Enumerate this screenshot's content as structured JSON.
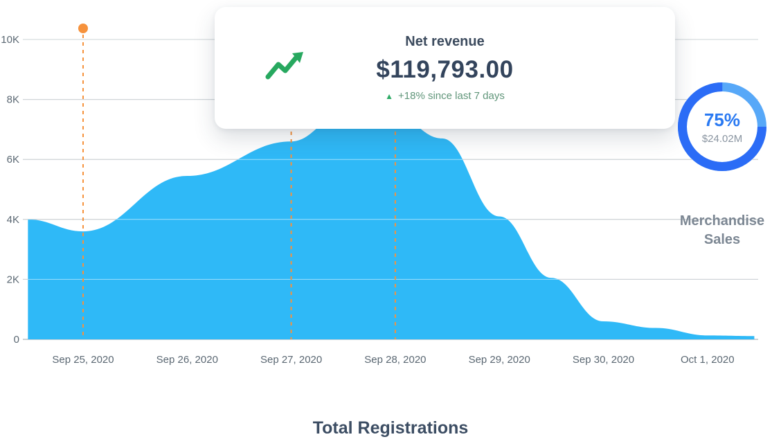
{
  "revenue_card": {
    "title": "Net revenue",
    "value": "$119,793.00",
    "delta": "+18% since last 7 days",
    "delta_direction": "up",
    "icon": "trend-up-arrow-icon",
    "accent_color": "#2EAB66"
  },
  "merch_donut": {
    "percent": 75,
    "percent_label": "75%",
    "amount": "$24.02M",
    "caption": "Merchandise Sales",
    "primary_color": "#2B6CF6",
    "track_color": "#57A8F8"
  },
  "chart_data": {
    "type": "area",
    "title": "Total Registrations",
    "categories": [
      "Sep 25, 2020",
      "Sep 26, 2020",
      "Sep 27, 2020",
      "Sep 28, 2020",
      "Sep 29, 2020",
      "Sep 30, 2020",
      "Oct 1, 2020"
    ],
    "values": [
      3600,
      5450,
      6600,
      7450,
      4100,
      600,
      130
    ],
    "points": [
      [
        -0.53,
        4000
      ],
      [
        0,
        3600
      ],
      [
        1,
        5450
      ],
      [
        2,
        6600
      ],
      [
        2.5,
        7500
      ],
      [
        3,
        7450
      ],
      [
        3.45,
        6700
      ],
      [
        4,
        4100
      ],
      [
        4.5,
        2050
      ],
      [
        5,
        600
      ],
      [
        5.5,
        380
      ],
      [
        6,
        130
      ],
      [
        6.45,
        110
      ]
    ],
    "ylim": [
      0,
      10000
    ],
    "yticks": [
      {
        "value": 0,
        "label": "0"
      },
      {
        "value": 2000,
        "label": "2K"
      },
      {
        "value": 4000,
        "label": "4K"
      },
      {
        "value": 6000,
        "label": "6K"
      },
      {
        "value": 8000,
        "label": "8K"
      },
      {
        "value": 10000,
        "label": "10K"
      }
    ],
    "grid": true,
    "area_color": "#2FB9F7",
    "grid_color": "#94A0A8",
    "annotations": {
      "color": "#F6923C",
      "vlines": [
        {
          "date": "Sep 25, 2020",
          "dot": true,
          "full_height": true
        },
        {
          "date": "Sep 27, 2020",
          "dot": false,
          "full_height": false
        },
        {
          "date": "Sep 28, 2020",
          "dot": false,
          "full_height": false
        }
      ]
    }
  }
}
